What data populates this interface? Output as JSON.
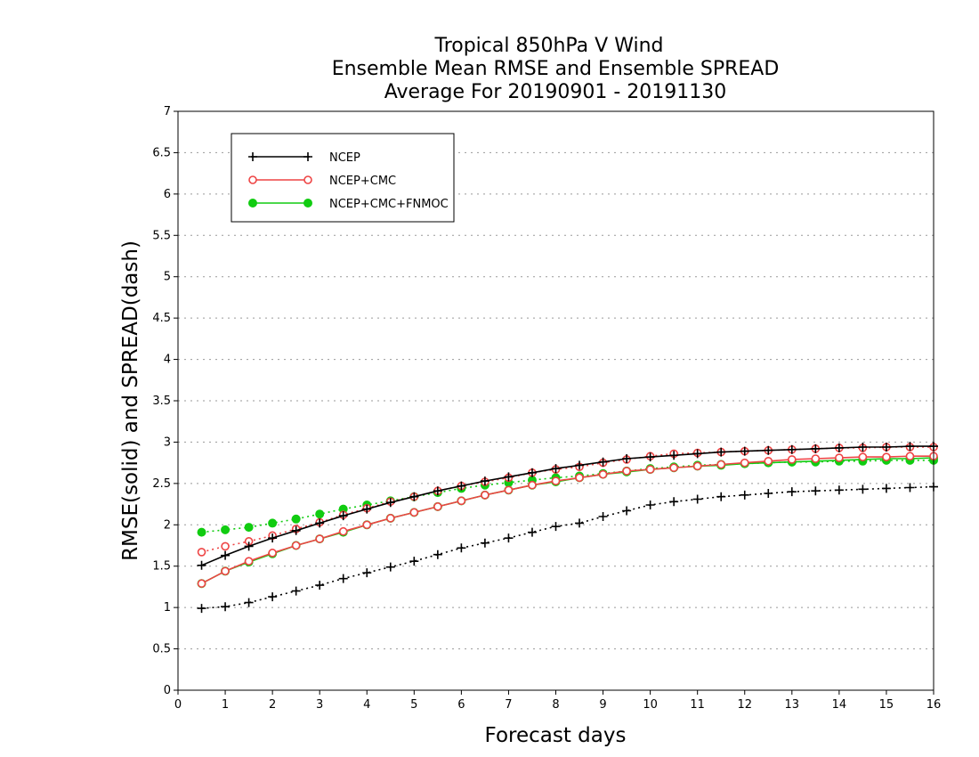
{
  "chart_data": {
    "type": "line",
    "title": [
      "Tropical 850hPa V Wind",
      "Ensemble Mean RMSE and Ensemble SPREAD",
      "Average For 20190901 - 20191130"
    ],
    "xlabel": "Forecast days",
    "ylabel": "RMSE(solid) and SPREAD(dash)",
    "xlim": [
      0,
      16
    ],
    "ylim": [
      0,
      7
    ],
    "xticks": [
      0,
      1,
      2,
      3,
      4,
      5,
      6,
      7,
      8,
      9,
      10,
      11,
      12,
      13,
      14,
      15,
      16
    ],
    "yticks": [
      0,
      0.5,
      1,
      1.5,
      2,
      2.5,
      3,
      3.5,
      4,
      4.5,
      5,
      5.5,
      6,
      6.5,
      7
    ],
    "ytick_labels": [
      "0",
      "0.5",
      "1",
      "1.5",
      "2",
      "2.5",
      "3",
      "3.5",
      "4",
      "4.5",
      "5",
      "5.5",
      "6",
      "6.5",
      "7"
    ],
    "grid": "horizontal dotted",
    "legend_position": "top-left",
    "x": [
      0.5,
      1,
      1.5,
      2,
      2.5,
      3,
      3.5,
      4,
      4.5,
      5,
      5.5,
      6,
      6.5,
      7,
      7.5,
      8,
      8.5,
      9,
      9.5,
      10,
      10.5,
      11,
      11.5,
      12,
      12.5,
      13,
      13.5,
      14,
      14.5,
      15,
      15.5,
      16
    ],
    "series": [
      {
        "name": "NCEP",
        "color": "#000000",
        "marker": "plus",
        "rmse": [
          1.51,
          1.63,
          1.74,
          1.84,
          1.93,
          2.02,
          2.11,
          2.19,
          2.27,
          2.34,
          2.41,
          2.47,
          2.53,
          2.58,
          2.63,
          2.68,
          2.72,
          2.76,
          2.8,
          2.82,
          2.84,
          2.86,
          2.88,
          2.89,
          2.9,
          2.91,
          2.92,
          2.93,
          2.94,
          2.94,
          2.95,
          2.95
        ],
        "spread": [
          0.99,
          1.01,
          1.06,
          1.13,
          1.2,
          1.27,
          1.35,
          1.42,
          1.49,
          1.56,
          1.64,
          1.72,
          1.78,
          1.84,
          1.91,
          1.98,
          2.02,
          2.1,
          2.17,
          2.24,
          2.28,
          2.31,
          2.34,
          2.36,
          2.38,
          2.4,
          2.41,
          2.42,
          2.43,
          2.44,
          2.45,
          2.46
        ]
      },
      {
        "name": "NCEP+CMC",
        "color": "#ee4444",
        "marker": "open-circle",
        "rmse": [
          1.29,
          1.44,
          1.56,
          1.66,
          1.75,
          1.83,
          1.92,
          2.0,
          2.08,
          2.15,
          2.22,
          2.29,
          2.36,
          2.42,
          2.48,
          2.53,
          2.57,
          2.61,
          2.65,
          2.67,
          2.69,
          2.71,
          2.73,
          2.75,
          2.77,
          2.79,
          2.8,
          2.81,
          2.82,
          2.82,
          2.83,
          2.83
        ],
        "spread": [
          1.67,
          1.74,
          1.8,
          1.87,
          1.95,
          2.03,
          2.12,
          2.2,
          2.28,
          2.34,
          2.41,
          2.47,
          2.52,
          2.57,
          2.63,
          2.67,
          2.7,
          2.75,
          2.79,
          2.83,
          2.86,
          2.87,
          2.88,
          2.89,
          2.9,
          2.91,
          2.92,
          2.93,
          2.93,
          2.94,
          2.94,
          2.94
        ]
      },
      {
        "name": "NCEP+CMC+FNMOC",
        "color": "#11cc11",
        "marker": "filled-circle",
        "rmse": [
          1.29,
          1.44,
          1.55,
          1.65,
          1.75,
          1.83,
          1.91,
          2.0,
          2.08,
          2.15,
          2.22,
          2.29,
          2.36,
          2.42,
          2.48,
          2.52,
          2.57,
          2.61,
          2.64,
          2.67,
          2.69,
          2.71,
          2.72,
          2.74,
          2.75,
          2.76,
          2.77,
          2.78,
          2.79,
          2.8,
          2.8,
          2.81
        ],
        "spread": [
          1.91,
          1.94,
          1.97,
          2.02,
          2.07,
          2.13,
          2.19,
          2.24,
          2.29,
          2.34,
          2.39,
          2.44,
          2.48,
          2.51,
          2.54,
          2.57,
          2.59,
          2.62,
          2.65,
          2.68,
          2.7,
          2.72,
          2.73,
          2.74,
          2.75,
          2.76,
          2.76,
          2.77,
          2.77,
          2.78,
          2.78,
          2.78
        ]
      }
    ]
  }
}
